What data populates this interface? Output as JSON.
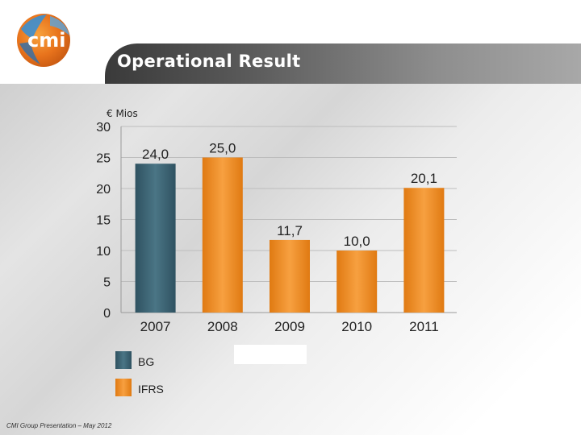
{
  "header": {
    "title": "Operational Result",
    "logo_text": "cmi"
  },
  "footer": {
    "text": "CMI Group Presentation – May 2012"
  },
  "colors": {
    "bg_bar": "#3d6575",
    "ifrs_bar": "#ee8a1c"
  },
  "chart_data": {
    "type": "bar",
    "title": "Operational Result",
    "unit_label": "€ Mios",
    "categories": [
      "2007",
      "2008",
      "2009",
      "2010",
      "2011"
    ],
    "values": [
      24.0,
      25.0,
      11.7,
      10.0,
      20.1
    ],
    "value_labels": [
      "24,0",
      "25,0",
      "11,7",
      "10,0",
      "20,1"
    ],
    "bar_series": [
      "BG",
      "IFRS",
      "IFRS",
      "IFRS",
      "IFRS"
    ],
    "ylim": [
      0,
      30
    ],
    "yticks": [
      "0",
      "5",
      "10",
      "15",
      "20",
      "25",
      "30"
    ],
    "ytick_values": [
      0,
      5,
      10,
      15,
      20,
      25,
      30
    ],
    "legend": [
      {
        "name": "BG",
        "color": "#3d6575"
      },
      {
        "name": "IFRS",
        "color": "#ee8a1c"
      }
    ],
    "grid": true
  }
}
